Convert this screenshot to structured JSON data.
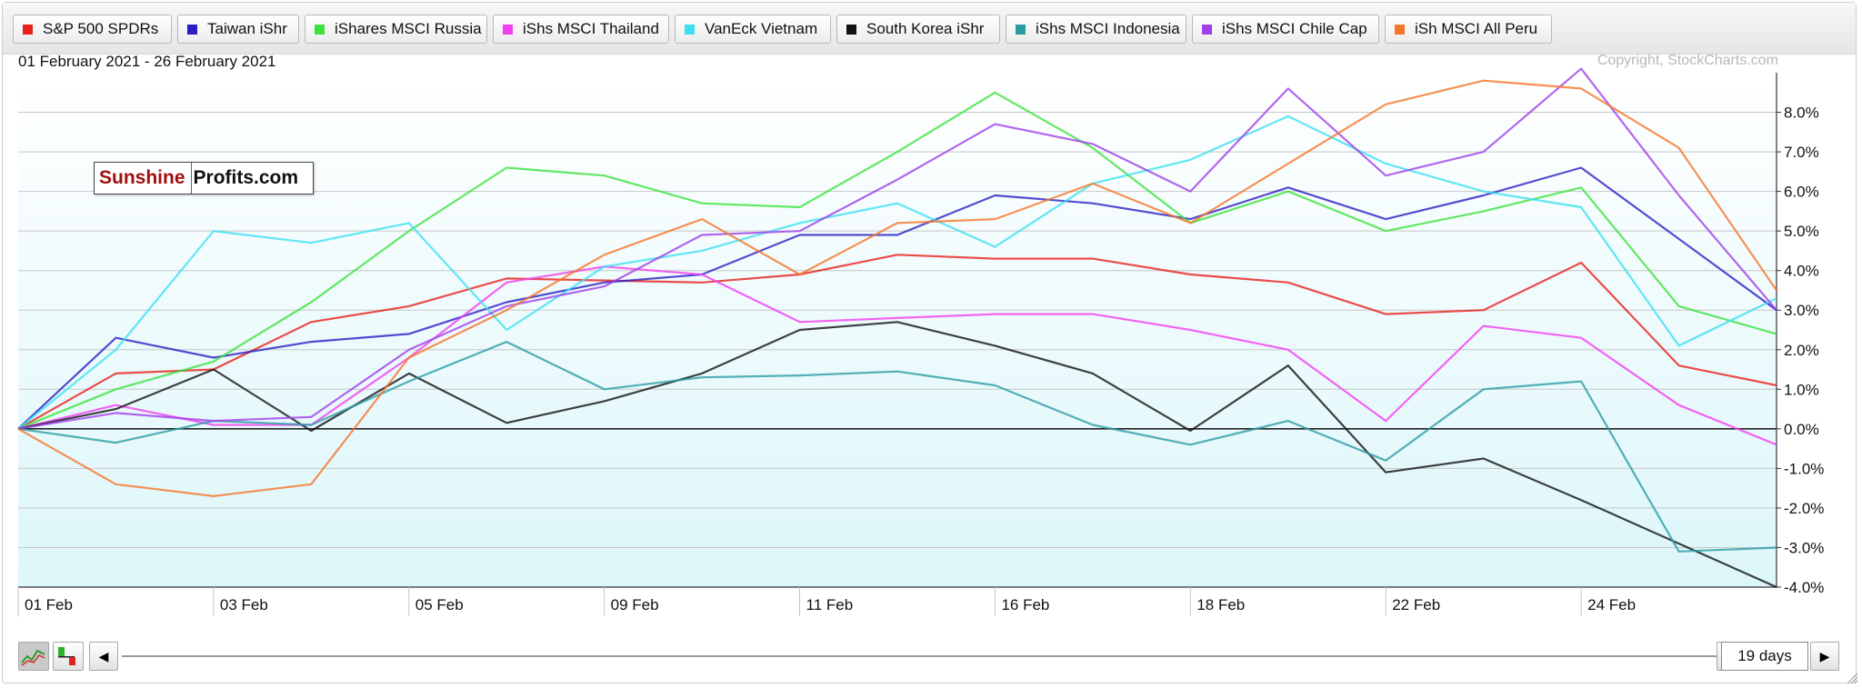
{
  "legend": [
    {
      "label": "S&P 500 SPDRs",
      "color": "#e8201b"
    },
    {
      "label": "Taiwan iShr",
      "color": "#2a1fc4"
    },
    {
      "label": "iShares MSCI Russia",
      "color": "#3ce23c"
    },
    {
      "label": "iShs MSCI Thailand",
      "color": "#f23ff0"
    },
    {
      "label": "VanEck Vietnam",
      "color": "#3be0f2"
    },
    {
      "label": "South Korea iShr",
      "color": "#111111"
    },
    {
      "label": "iShs MSCI Indonesia",
      "color": "#2a9ca4"
    },
    {
      "label": "iShs MSCI Chile Cap",
      "color": "#a040ea"
    },
    {
      "label": "iSh MSCI All Peru",
      "color": "#f5762a"
    }
  ],
  "header": {
    "date_range": "01 February 2021 - 26 February 2021",
    "copyright": "Copyright, StockCharts.com"
  },
  "watermark": {
    "part1": "Sunshine",
    "part2": "Profits.com"
  },
  "controls": {
    "period": "19 days",
    "left_arrow": "◀",
    "right_arrow": "▶"
  },
  "chart_data": {
    "type": "line",
    "x": [
      "01 Feb",
      "02 Feb",
      "03 Feb",
      "04 Feb",
      "05 Feb",
      "08 Feb",
      "09 Feb",
      "10 Feb",
      "11 Feb",
      "12 Feb",
      "16 Feb",
      "17 Feb",
      "18 Feb",
      "19 Feb",
      "22 Feb",
      "23 Feb",
      "24 Feb",
      "25 Feb",
      "26 Feb"
    ],
    "xtick_labels": [
      "01 Feb",
      "03 Feb",
      "05 Feb",
      "09 Feb",
      "11 Feb",
      "16 Feb",
      "18 Feb",
      "22 Feb",
      "24 Feb"
    ],
    "ytick_labels": [
      "8.0%",
      "7.0%",
      "6.0%",
      "5.0%",
      "4.0%",
      "3.0%",
      "2.0%",
      "1.0%",
      "0.0%",
      "-1.0%",
      "-2.0%",
      "-3.0%",
      "-4.0%"
    ],
    "ylim": [
      -4.0,
      9.0
    ],
    "unit": "%",
    "series": [
      {
        "name": "S&P 500 SPDRs",
        "color": "#e8201b",
        "values": [
          0,
          1.4,
          1.5,
          2.7,
          3.1,
          3.8,
          3.75,
          3.7,
          3.9,
          4.4,
          4.3,
          4.3,
          3.9,
          3.7,
          2.9,
          3.0,
          4.2,
          1.6,
          1.1
        ]
      },
      {
        "name": "Taiwan iShr",
        "color": "#2a1fc4",
        "values": [
          0,
          2.3,
          1.8,
          2.2,
          2.4,
          3.2,
          3.7,
          3.9,
          4.9,
          4.9,
          5.9,
          5.7,
          5.3,
          6.1,
          5.3,
          5.9,
          6.6,
          4.8,
          3.0
        ]
      },
      {
        "name": "iShares MSCI Russia",
        "color": "#3ce23c",
        "values": [
          0,
          1.0,
          1.7,
          3.2,
          5.0,
          6.6,
          6.4,
          5.7,
          5.6,
          7.0,
          8.5,
          7.1,
          5.2,
          6.0,
          5.0,
          5.5,
          6.1,
          3.1,
          2.4
        ]
      },
      {
        "name": "iShs MSCI Thailand",
        "color": "#f23ff0",
        "values": [
          0,
          0.6,
          0.1,
          0.1,
          1.8,
          3.7,
          4.1,
          3.9,
          2.7,
          2.8,
          2.9,
          2.9,
          2.5,
          2.0,
          0.2,
          2.6,
          2.3,
          0.6,
          -0.4
        ]
      },
      {
        "name": "VanEck Vietnam",
        "color": "#3be0f2",
        "values": [
          0,
          2.0,
          5.0,
          4.7,
          5.2,
          2.5,
          4.1,
          4.5,
          5.2,
          5.7,
          4.6,
          6.2,
          6.8,
          7.9,
          6.7,
          6.0,
          5.6,
          2.1,
          3.3
        ]
      },
      {
        "name": "South Korea iShr",
        "color": "#111111",
        "values": [
          0,
          0.5,
          1.5,
          -0.05,
          1.4,
          0.15,
          0.7,
          1.4,
          2.5,
          2.7,
          2.1,
          1.4,
          -0.05,
          1.6,
          -1.1,
          -0.75,
          -1.8,
          -2.9,
          -4.0
        ]
      },
      {
        "name": "iShs MSCI Indonesia",
        "color": "#2a9ca4",
        "values": [
          0,
          -0.35,
          0.2,
          0.1,
          1.2,
          2.2,
          1.0,
          1.3,
          1.35,
          1.45,
          1.1,
          0.1,
          -0.4,
          0.2,
          -0.8,
          1.0,
          1.2,
          -3.1,
          -3.0
        ]
      },
      {
        "name": "iShs MSCI Chile Cap",
        "color": "#a040ea",
        "values": [
          0,
          0.4,
          0.2,
          0.3,
          2.0,
          3.1,
          3.6,
          4.9,
          5.0,
          6.3,
          7.7,
          7.2,
          6.0,
          8.6,
          6.4,
          7.0,
          9.1,
          5.9,
          3.0
        ]
      },
      {
        "name": "iSh MSCI All Peru",
        "color": "#f5762a",
        "values": [
          0,
          -1.4,
          -1.7,
          -1.4,
          1.8,
          3.0,
          4.4,
          5.3,
          3.9,
          5.2,
          5.3,
          6.2,
          5.2,
          6.7,
          8.2,
          8.8,
          8.6,
          7.1,
          3.5
        ]
      }
    ]
  }
}
